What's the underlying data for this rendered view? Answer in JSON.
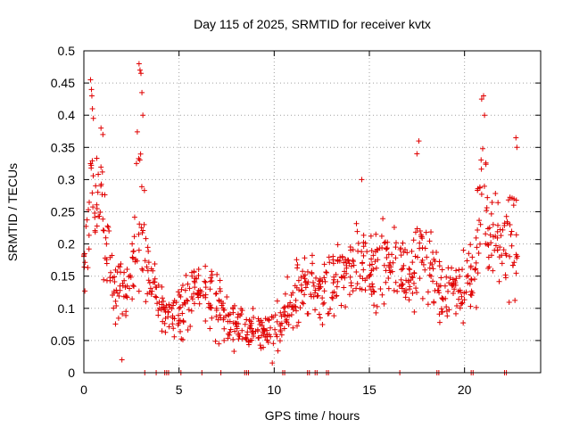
{
  "chart_data": {
    "type": "scatter",
    "title": "Day 115 of 2025, SRMTID for receiver kvtx",
    "xlabel": "GPS time / hours",
    "ylabel": "SRMTID / TECUs",
    "xlim": [
      0,
      24
    ],
    "ylim": [
      0,
      0.5
    ],
    "x_ticks": [
      0,
      5,
      10,
      15,
      20
    ],
    "x_tick_labels": [
      "0",
      "5",
      "10",
      "15",
      "20"
    ],
    "y_ticks": [
      0,
      0.05,
      0.1,
      0.15,
      0.2,
      0.25,
      0.3,
      0.35,
      0.4,
      0.45,
      0.5
    ],
    "y_tick_labels": [
      "0",
      "0.05",
      "0.1",
      "0.15",
      "0.2",
      "0.25",
      "0.3",
      "0.35",
      "0.4",
      "0.45",
      "0.5"
    ],
    "grid": true,
    "marker": "+",
    "color": "#e00000",
    "series": [
      {
        "name": "SRMTID",
        "trend": [
          [
            0.0,
            0.17,
            0.04
          ],
          [
            0.2,
            0.2,
            0.08
          ],
          [
            0.4,
            0.3,
            0.09
          ],
          [
            0.6,
            0.24,
            0.07
          ],
          [
            0.8,
            0.26,
            0.07
          ],
          [
            1.0,
            0.28,
            0.08
          ],
          [
            1.2,
            0.2,
            0.06
          ],
          [
            1.4,
            0.16,
            0.05
          ],
          [
            1.6,
            0.13,
            0.04
          ],
          [
            1.8,
            0.12,
            0.04
          ],
          [
            2.0,
            0.13,
            0.04
          ],
          [
            2.2,
            0.12,
            0.04
          ],
          [
            2.4,
            0.14,
            0.04
          ],
          [
            2.6,
            0.17,
            0.05
          ],
          [
            2.8,
            0.25,
            0.1
          ],
          [
            3.0,
            0.3,
            0.12
          ],
          [
            3.2,
            0.2,
            0.06
          ],
          [
            3.4,
            0.16,
            0.04
          ],
          [
            3.6,
            0.14,
            0.04
          ],
          [
            3.8,
            0.12,
            0.03
          ],
          [
            4.0,
            0.1,
            0.03
          ],
          [
            4.4,
            0.09,
            0.03
          ],
          [
            4.8,
            0.09,
            0.03
          ],
          [
            5.2,
            0.1,
            0.04
          ],
          [
            5.6,
            0.12,
            0.04
          ],
          [
            6.0,
            0.13,
            0.04
          ],
          [
            6.4,
            0.12,
            0.05
          ],
          [
            6.8,
            0.11,
            0.04
          ],
          [
            7.2,
            0.1,
            0.04
          ],
          [
            7.6,
            0.08,
            0.03
          ],
          [
            8.0,
            0.07,
            0.03
          ],
          [
            8.4,
            0.065,
            0.025
          ],
          [
            8.8,
            0.065,
            0.025
          ],
          [
            9.2,
            0.07,
            0.03
          ],
          [
            9.6,
            0.065,
            0.025
          ],
          [
            10.0,
            0.07,
            0.03
          ],
          [
            10.4,
            0.08,
            0.03
          ],
          [
            10.8,
            0.1,
            0.04
          ],
          [
            11.2,
            0.12,
            0.04
          ],
          [
            11.6,
            0.13,
            0.04
          ],
          [
            12.0,
            0.14,
            0.04
          ],
          [
            12.4,
            0.13,
            0.04
          ],
          [
            12.8,
            0.13,
            0.04
          ],
          [
            13.2,
            0.14,
            0.04
          ],
          [
            13.6,
            0.15,
            0.05
          ],
          [
            14.0,
            0.16,
            0.05
          ],
          [
            14.4,
            0.18,
            0.05
          ],
          [
            14.8,
            0.18,
            0.05
          ],
          [
            15.2,
            0.16,
            0.05
          ],
          [
            15.6,
            0.17,
            0.05
          ],
          [
            16.0,
            0.18,
            0.05
          ],
          [
            16.4,
            0.18,
            0.06
          ],
          [
            16.8,
            0.16,
            0.05
          ],
          [
            17.2,
            0.15,
            0.05
          ],
          [
            17.6,
            0.18,
            0.06
          ],
          [
            18.0,
            0.17,
            0.05
          ],
          [
            18.4,
            0.15,
            0.05
          ],
          [
            18.8,
            0.14,
            0.05
          ],
          [
            19.2,
            0.12,
            0.04
          ],
          [
            19.6,
            0.13,
            0.04
          ],
          [
            20.0,
            0.13,
            0.04
          ],
          [
            20.4,
            0.16,
            0.05
          ],
          [
            20.8,
            0.22,
            0.08
          ],
          [
            21.0,
            0.3,
            0.1
          ],
          [
            21.2,
            0.22,
            0.07
          ],
          [
            21.6,
            0.19,
            0.06
          ],
          [
            22.0,
            0.2,
            0.06
          ],
          [
            22.4,
            0.21,
            0.07
          ],
          [
            22.8,
            0.2,
            0.07
          ]
        ],
        "spikes": [
          [
            0.35,
            0.455
          ],
          [
            0.4,
            0.44
          ],
          [
            0.42,
            0.43
          ],
          [
            0.45,
            0.41
          ],
          [
            0.5,
            0.395
          ],
          [
            0.9,
            0.38
          ],
          [
            1.0,
            0.37
          ],
          [
            2.9,
            0.48
          ],
          [
            2.95,
            0.47
          ],
          [
            3.0,
            0.465
          ],
          [
            3.05,
            0.435
          ],
          [
            3.1,
            0.4
          ],
          [
            14.6,
            0.3
          ],
          [
            17.5,
            0.34
          ],
          [
            17.6,
            0.36
          ],
          [
            20.9,
            0.425
          ],
          [
            21.0,
            0.43
          ],
          [
            21.05,
            0.4
          ],
          [
            22.7,
            0.365
          ],
          [
            22.75,
            0.35
          ],
          [
            2.0,
            0.02
          ],
          [
            9.9,
            0.015
          ]
        ],
        "zero_points": [
          3.2,
          3.8,
          4.25,
          4.35,
          4.45,
          5.1,
          6.2,
          7.2,
          8.45,
          8.55,
          8.65,
          10.45,
          10.55,
          11.75,
          11.85,
          12.15,
          12.25,
          12.75,
          12.85,
          16.6,
          18.55,
          18.65,
          20.35,
          20.45,
          22.1,
          22.2
        ]
      }
    ]
  }
}
